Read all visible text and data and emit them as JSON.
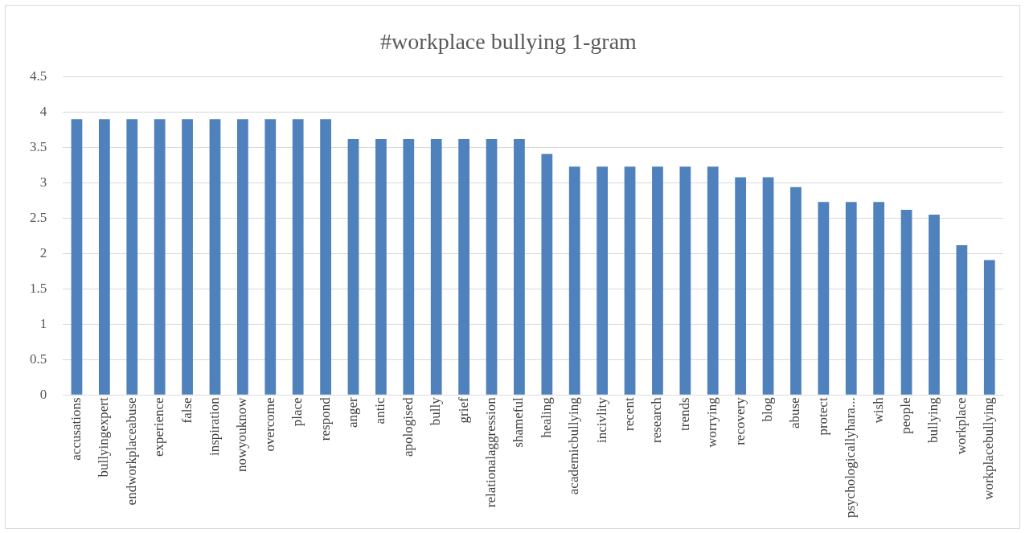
{
  "chart_data": {
    "type": "bar",
    "title": "#workplace bullying 1-gram",
    "categories": [
      "accusations",
      "bullyingexpert",
      "endworkplaceabuse",
      "experience",
      "false",
      "inspiration",
      "nowyouknow",
      "overcome",
      "place",
      "respond",
      "anger",
      "antic",
      "apologised",
      "bully",
      "grief",
      "relationalaggression",
      "shameful",
      "healing",
      "academicbullying",
      "incivlity",
      "recent",
      "research",
      "trends",
      "worrying",
      "recovery",
      "blog",
      "abuse",
      "protect",
      "psychologicallyhara...",
      "wish",
      "people",
      "bullying",
      "workplace",
      "workplacebullying"
    ],
    "values": [
      3.9,
      3.9,
      3.9,
      3.9,
      3.9,
      3.9,
      3.9,
      3.9,
      3.9,
      3.9,
      3.62,
      3.62,
      3.62,
      3.62,
      3.62,
      3.62,
      3.62,
      3.41,
      3.23,
      3.23,
      3.23,
      3.23,
      3.23,
      3.23,
      3.08,
      3.08,
      2.94,
      2.73,
      2.73,
      2.73,
      2.62,
      2.55,
      2.12,
      1.91
    ],
    "color": "#4f81bd",
    "ylim": [
      0,
      4.5
    ],
    "yticks": [
      0,
      0.5,
      1,
      1.5,
      2,
      2.5,
      3,
      3.5,
      4,
      4.5
    ],
    "grid": "y"
  }
}
